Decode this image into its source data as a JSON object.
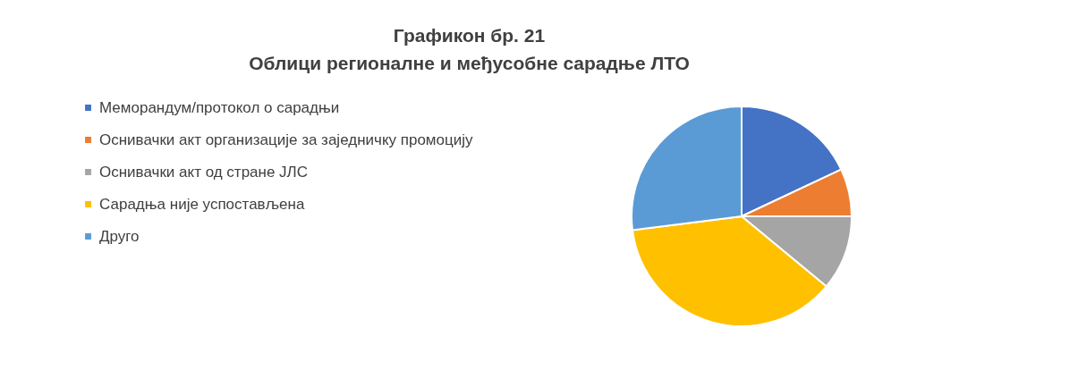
{
  "chart_data": {
    "type": "pie",
    "title": "Графикон бр. 21",
    "subtitle": "Облици регионалне и међусобне сарадње ЛТО",
    "categories": [
      "Меморандум/протокол о сарадњи",
      "Оснивачки акт организације за заједничку промоцију",
      "Оснивачки акт од стране ЈЛС",
      "Сарадња није успостављена",
      "Друго"
    ],
    "values": [
      18,
      7,
      11,
      37,
      27
    ],
    "colors": [
      "#4472c4",
      "#ed7d31",
      "#a5a5a5",
      "#ffc000",
      "#5b9bd5"
    ],
    "legend": "left"
  }
}
